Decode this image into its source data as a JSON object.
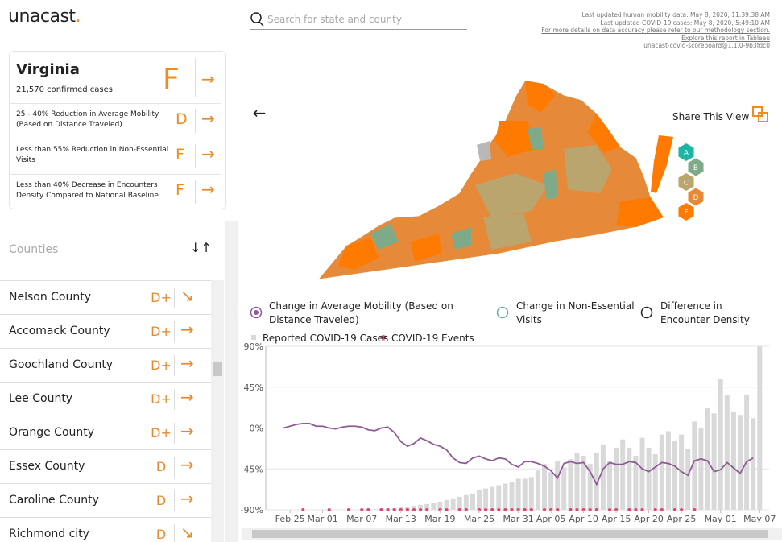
{
  "header": {
    "logo": "unacast",
    "logo_dot": ".",
    "search_placeholder": "Search for state and county",
    "updates": [
      "Last updated human mobility data: May 8, 2020, 11:39:38 AM",
      "Last updated COVID-19 cases: May 8, 2020, 5:49:10 AM",
      "For more details on data accuracy please refer to our methodology section.",
      "Explore this report in Tableau",
      "unacast-covid-scoreboard@1.1.0-9b3fdc0"
    ]
  },
  "state": {
    "name": "Virginia",
    "cases": "21,570 confirmed cases",
    "grade": "F",
    "arrow": "→",
    "metrics": [
      {
        "label": "25 - 40% Reduction in Average Mobility (Based on Distance Traveled)",
        "grade": "D",
        "arrow": "→"
      },
      {
        "label": "Less than 55% Reduction in Non-Essential Visits",
        "grade": "F",
        "arrow": "→"
      },
      {
        "label": "Less than 40% Decrease in Encounters Density Compared to National Baseline",
        "grade": "F",
        "arrow": "→"
      }
    ]
  },
  "counties_label": "Counties",
  "sort_icon": "↓↑",
  "counties": [
    {
      "name": "Nelson County",
      "grade": "D+",
      "arrow": "↘"
    },
    {
      "name": "Accomack County",
      "grade": "D+",
      "arrow": "→"
    },
    {
      "name": "Goochland County",
      "grade": "D+",
      "arrow": "→"
    },
    {
      "name": "Lee County",
      "grade": "D+",
      "arrow": "→"
    },
    {
      "name": "Orange County",
      "grade": "D+",
      "arrow": "→"
    },
    {
      "name": "Essex County",
      "grade": "D",
      "arrow": "→"
    },
    {
      "name": "Caroline County",
      "grade": "D",
      "arrow": "→"
    },
    {
      "name": "Richmond city",
      "grade": "D",
      "arrow": "↘"
    }
  ],
  "back_icon": "←",
  "share": "Share This View",
  "map_legend": [
    {
      "label": "A",
      "color": "#1fb5a5"
    },
    {
      "label": "B",
      "color": "#7faa8a"
    },
    {
      "label": "C",
      "color": "#bba56e"
    },
    {
      "label": "D",
      "color": "#e68a3a"
    },
    {
      "label": "F",
      "color": "#ff7a00"
    }
  ],
  "chart_data": {
    "type": "bar-line",
    "other_options": [
      "Change in Non-Essential Visits",
      "Difference in Encounter Density"
    ],
    "x": [
      "Feb 24",
      "Feb 25",
      "Feb 26",
      "Feb 27",
      "Feb 28",
      "Feb 29",
      "Mar 01",
      "Mar 02",
      "Mar 03",
      "Mar 04",
      "Mar 05",
      "Mar 06",
      "Mar 07",
      "Mar 08",
      "Mar 09",
      "Mar 10",
      "Mar 11",
      "Mar 12",
      "Mar 13",
      "Mar 14",
      "Mar 15",
      "Mar 16",
      "Mar 17",
      "Mar 18",
      "Mar 19",
      "Mar 20",
      "Mar 21",
      "Mar 22",
      "Mar 23",
      "Mar 24",
      "Mar 25",
      "Mar 26",
      "Mar 27",
      "Mar 28",
      "Mar 29",
      "Mar 30",
      "Mar 31",
      "Apr 01",
      "Apr 02",
      "Apr 03",
      "Apr 04",
      "Apr 05",
      "Apr 06",
      "Apr 07",
      "Apr 08",
      "Apr 09",
      "Apr 10",
      "Apr 11",
      "Apr 12",
      "Apr 13",
      "Apr 14",
      "Apr 15",
      "Apr 16",
      "Apr 17",
      "Apr 18",
      "Apr 19",
      "Apr 20",
      "Apr 21",
      "Apr 22",
      "Apr 23",
      "Apr 24",
      "Apr 25",
      "Apr 26",
      "Apr 27",
      "Apr 28",
      "Apr 29",
      "Apr 30",
      "May 01",
      "May 02",
      "May 03",
      "May 04",
      "May 05",
      "May 06",
      "May 07"
    ],
    "xticks": [
      "Feb 25",
      "Mar 01",
      "Mar 07",
      "Mar 13",
      "Mar 19",
      "Mar 25",
      "Mar 31",
      "Apr 05",
      "Apr 10",
      "Apr 15",
      "Apr 20",
      "Apr 25",
      "May 01",
      "May 07"
    ],
    "ylim": [
      -90,
      90
    ],
    "yticks": [
      {
        "value": 90,
        "label": "90%"
      },
      {
        "value": 45,
        "label": "45%"
      },
      {
        "value": 0,
        "label": "0%"
      },
      {
        "value": -45,
        "label": "-45%"
      },
      {
        "value": -90,
        "label": "-90%"
      }
    ],
    "y2lim": [
      0,
      1000
    ],
    "series": [
      {
        "name": "Reported COVID-19 Cases",
        "color": "#d9d9d9",
        "type": "bar",
        "axis": "y2",
        "values": [
          0,
          0,
          0,
          0,
          0,
          0,
          0,
          0,
          0,
          0,
          0,
          0,
          0,
          2,
          3,
          5,
          8,
          10,
          15,
          20,
          25,
          30,
          35,
          40,
          50,
          60,
          70,
          80,
          90,
          100,
          120,
          130,
          140,
          150,
          160,
          170,
          190,
          190,
          200,
          240,
          280,
          230,
          300,
          260,
          310,
          350,
          330,
          280,
          350,
          400,
          300,
          380,
          430,
          380,
          330,
          440,
          380,
          340,
          460,
          480,
          420,
          460,
          370,
          540,
          500,
          620,
          590,
          800,
          700,
          600,
          580,
          700,
          560,
          1000
        ]
      },
      {
        "name": "Change in Average Mobility (Based on Distance Traveled)",
        "color": "#8e5c94",
        "type": "line",
        "values": [
          0,
          2,
          4,
          5,
          5,
          2,
          2,
          0,
          -1,
          1,
          2,
          2,
          1,
          -2,
          -3,
          0,
          1,
          -5,
          -15,
          -20,
          -17,
          -11,
          -14,
          -18,
          -20,
          -24,
          -33,
          -38,
          -39,
          -33,
          -31,
          -34,
          -36,
          -33,
          -34,
          -40,
          -43,
          -37,
          -37,
          -39,
          -42,
          -47,
          -55,
          -39,
          -37,
          -39,
          -38,
          -48,
          -62,
          -45,
          -38,
          -40,
          -40,
          -37,
          -38,
          -45,
          -48,
          -43,
          -38,
          -39,
          -42,
          -48,
          -52,
          -36,
          -34,
          -36,
          -48,
          -46,
          -38,
          -44,
          -50,
          -37,
          -33,
          null
        ]
      }
    ],
    "events": {
      "name": "COVID-19 Events",
      "color": "#e0436b",
      "dates": [
        "Feb 27",
        "Mar 02",
        "Mar 05",
        "Mar 07",
        "Mar 08",
        "Mar 10",
        "Mar 11",
        "Mar 12",
        "Mar 13",
        "Mar 14",
        "Mar 15",
        "Mar 16",
        "Mar 17",
        "Mar 19",
        "Mar 20",
        "Mar 22",
        "Mar 23",
        "Mar 25",
        "Mar 26",
        "Mar 27",
        "Mar 28",
        "Mar 29",
        "Mar 30",
        "Mar 31",
        "Apr 01",
        "Apr 02",
        "Apr 04",
        "Apr 05",
        "Apr 06",
        "Apr 08",
        "Apr 09",
        "Apr 10",
        "Apr 11",
        "Apr 12",
        "Apr 14",
        "Apr 15",
        "Apr 17",
        "Apr 18",
        "Apr 19",
        "Apr 21",
        "Apr 22",
        "Apr 24",
        "Apr 25",
        "Apr 27"
      ]
    }
  }
}
